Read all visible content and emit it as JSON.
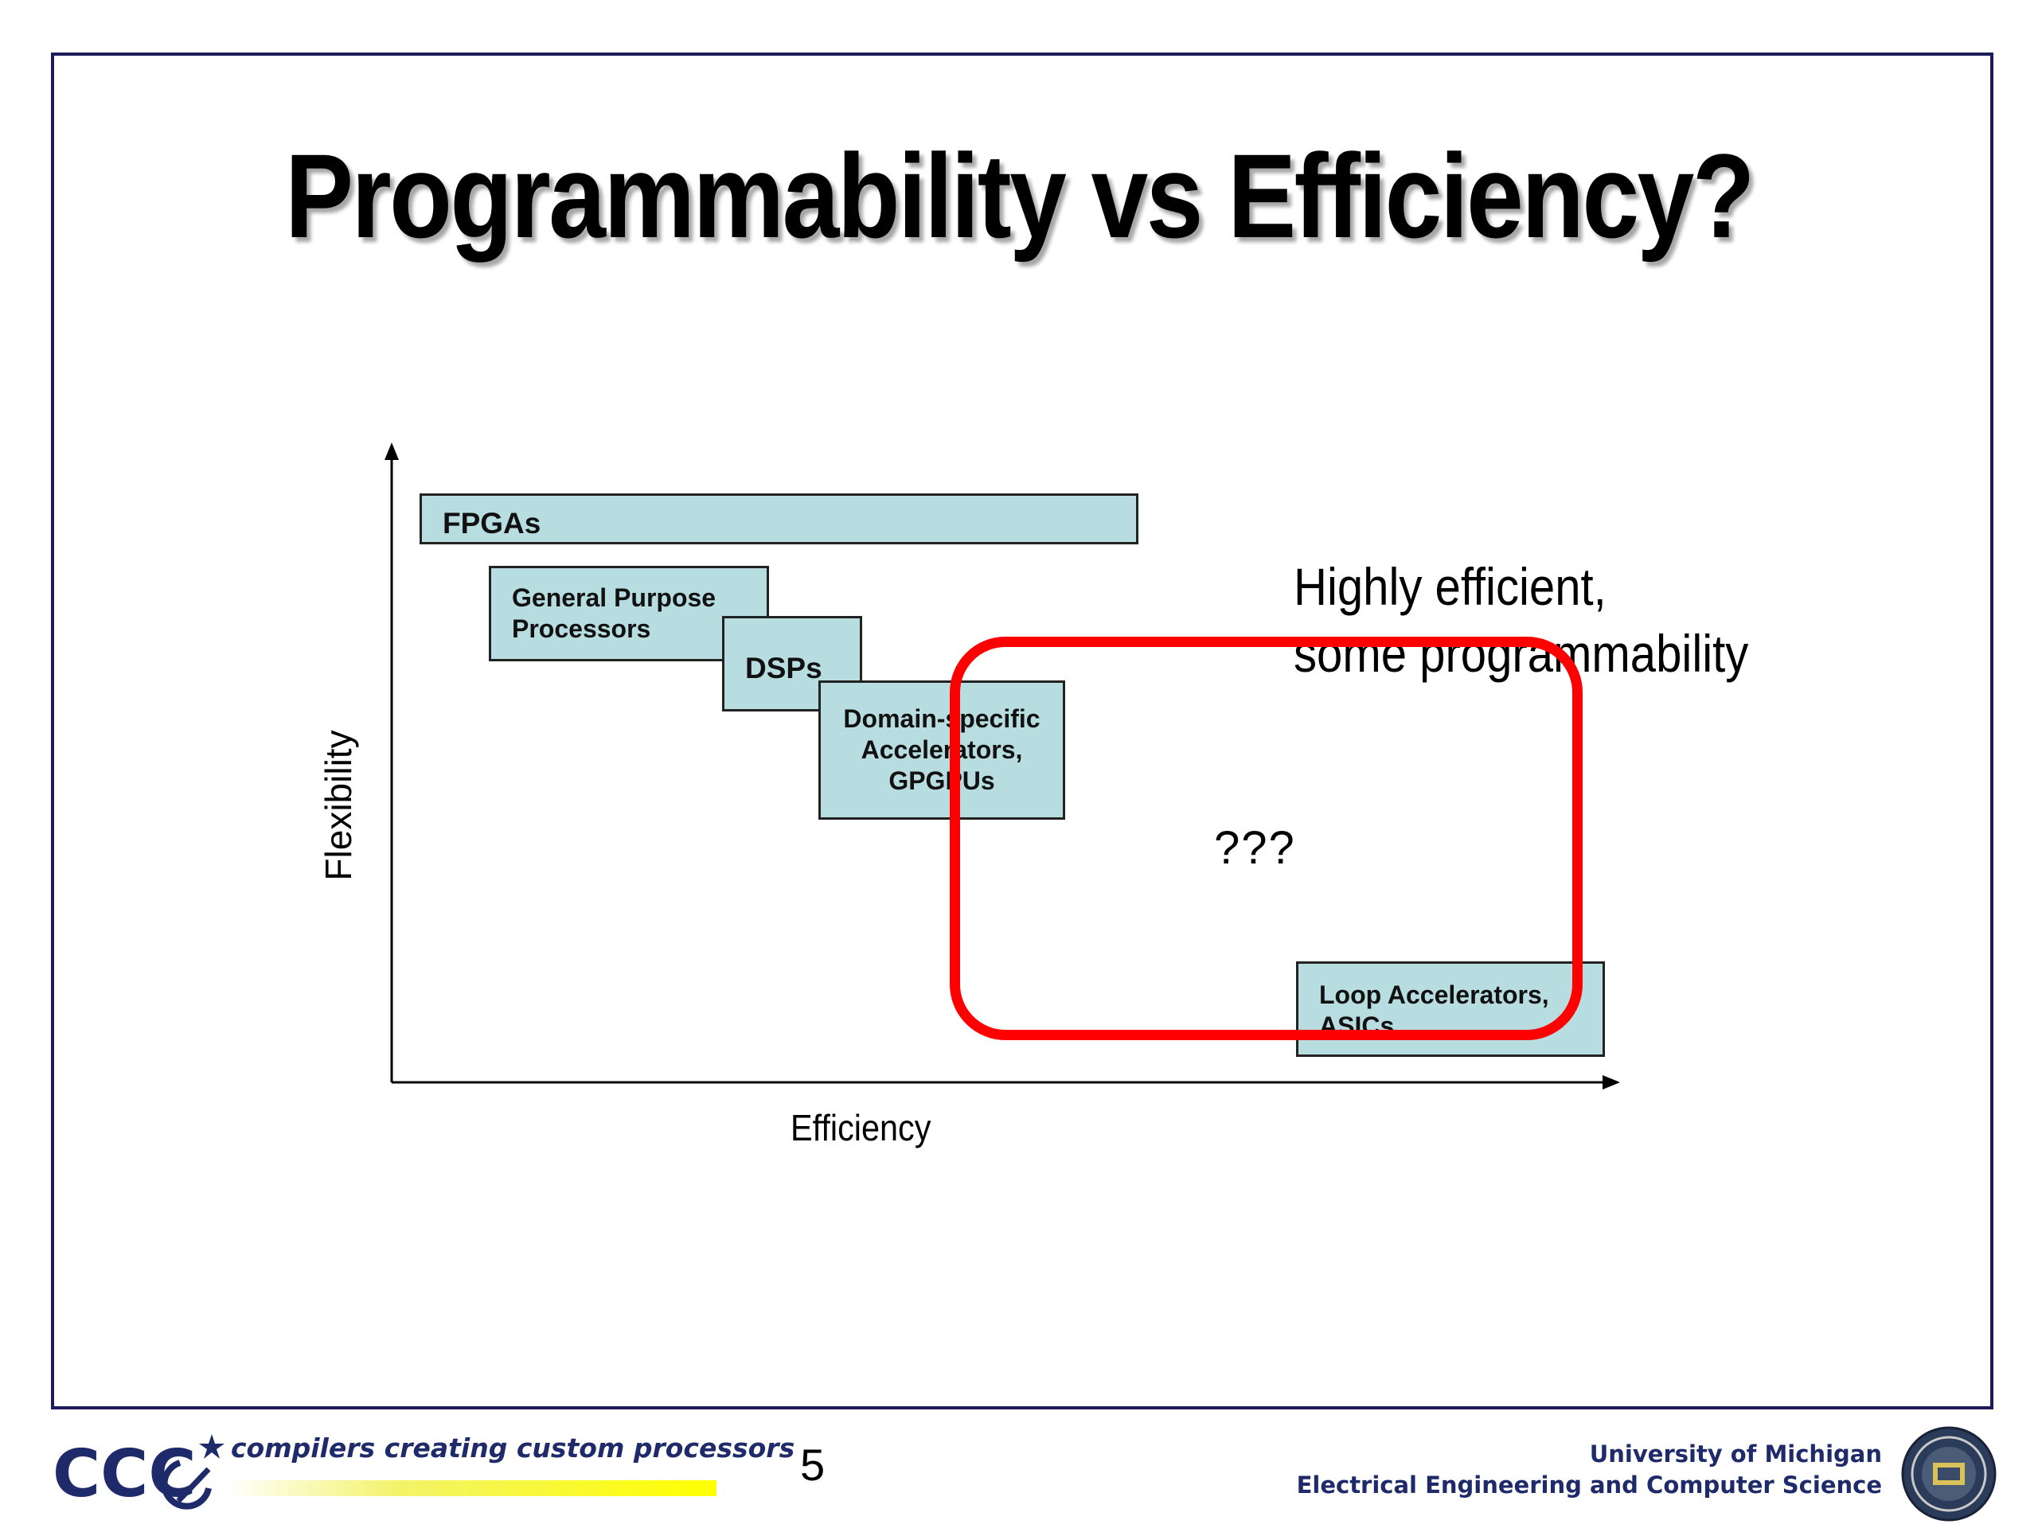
{
  "slide": {
    "title": "Programmability vs Efficiency?",
    "page_number": "5"
  },
  "diagram": {
    "x_axis_label": "Efficiency",
    "y_axis_label": "Flexibility",
    "boxes": [
      {
        "id": "fpgas",
        "label": "FPGAs"
      },
      {
        "id": "gpp",
        "label": "General Purpose\nProcessors"
      },
      {
        "id": "dsps",
        "label": "DSPs"
      },
      {
        "id": "domain",
        "label": "Domain-specific\nAccelerators,\nGPGPUs"
      },
      {
        "id": "loop",
        "label": "Loop Accelerators,\nASICs"
      }
    ],
    "annotation": "Highly efficient,\nsome programmability",
    "question": "???",
    "highlight_color": "#ff0000",
    "box_fill": "#b7dde1"
  },
  "footer": {
    "logo_text": "CCC",
    "tagline": "compilers creating custom processors",
    "university_line1": "University of Michigan",
    "university_line2": "Electrical Engineering and Computer Science",
    "seal_icon": "university-seal-icon"
  }
}
